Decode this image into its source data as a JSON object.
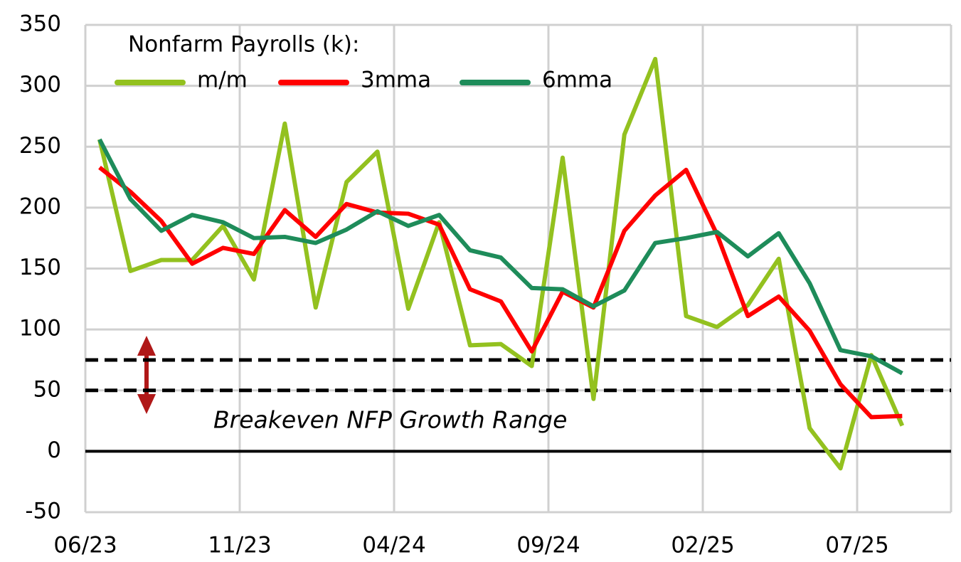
{
  "chart_data": {
    "type": "line",
    "legend_title": "Nonfarm Payrolls (k):",
    "annotation": "Breakeven NFP Growth Range",
    "categories": [
      "06/23",
      null,
      null,
      null,
      null,
      "11/23",
      null,
      null,
      null,
      null,
      "04/24",
      null,
      null,
      null,
      null,
      "09/24",
      null,
      null,
      null,
      null,
      "02/25",
      null,
      null,
      null,
      null,
      "07/25",
      null
    ],
    "series": [
      {
        "name": "m/m",
        "color": "#93c11f",
        "values": [
          256,
          148,
          157,
          157,
          185,
          141,
          269,
          118,
          221,
          246,
          117,
          188,
          87,
          88,
          70,
          241,
          43,
          260,
          322,
          111,
          102,
          120,
          158,
          19,
          -14,
          79,
          21
        ]
      },
      {
        "name": "3mma",
        "color": "#ff0000",
        "values": [
          233,
          213,
          189,
          154,
          167,
          162,
          198,
          176,
          203,
          196,
          195,
          186,
          133,
          123,
          82,
          131,
          118,
          181,
          210,
          231,
          178,
          111,
          127,
          99,
          55,
          28,
          29
        ]
      },
      {
        "name": "6mma",
        "color": "#1e8c5a",
        "values": [
          256,
          207,
          181,
          194,
          188,
          175,
          176,
          171,
          182,
          197,
          185,
          194,
          165,
          159,
          134,
          133,
          119,
          132,
          171,
          175,
          180,
          160,
          179,
          138,
          83,
          78,
          64
        ]
      }
    ],
    "reference_lines": [
      75,
      50
    ],
    "ylim": [
      -50,
      350
    ],
    "yticks": [
      -50,
      0,
      50,
      100,
      150,
      200,
      250,
      300,
      350
    ],
    "grid": true
  }
}
